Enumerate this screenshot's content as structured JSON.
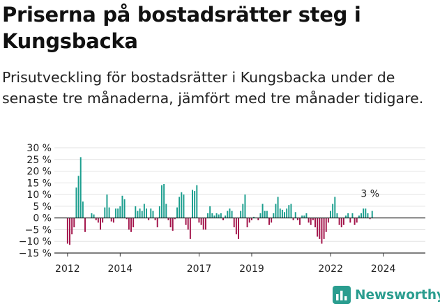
{
  "header": {
    "title": "Priserna på bostadsrätter steg i Kungsbacka",
    "subtitle": "Prisutveckling för bostadsrätter i Kungsbacka under de senaste tre månaderna, jämfört med tre månader tidigare."
  },
  "brand": {
    "name": "Newsworthy"
  },
  "colors": {
    "positive": "#1b9e8e",
    "negative": "#a3154b",
    "logo": "#2a9d8f"
  },
  "chart_data": {
    "type": "bar",
    "title": "Priserna på bostadsrätter steg i Kungsbacka",
    "xlabel": "",
    "ylabel": "",
    "ylim": [
      -15,
      30
    ],
    "y_ticks": [
      -15,
      -10,
      -5,
      0,
      5,
      10,
      15,
      20,
      25,
      30
    ],
    "y_tick_labels": [
      "−15 %",
      "−10 %",
      "−5 %",
      "0 %",
      "5 %",
      "10 %",
      "15 %",
      "20 %",
      "25 %",
      "30 %"
    ],
    "x_range": [
      2011.5,
      2025.6
    ],
    "x_ticks": [
      2012,
      2014,
      2017,
      2019,
      2022,
      2024
    ],
    "x_tick_labels": [
      "2012",
      "2014",
      "2017",
      "2019",
      "2022",
      "2024"
    ],
    "grid": true,
    "last_label": "3 %",
    "series": [
      {
        "name": "Prisutveckling",
        "start": 2012.0,
        "step": 0.0833,
        "values": [
          -11,
          -11.5,
          -7,
          -4,
          13,
          18,
          26,
          7,
          -6,
          0,
          0,
          2,
          1.5,
          -1,
          -2,
          -5,
          -2,
          4.5,
          10,
          4.5,
          -1.5,
          -2,
          4,
          4,
          5,
          9.5,
          8,
          -0.5,
          -5,
          -6,
          -4,
          5,
          3,
          4,
          3,
          6,
          4,
          -1,
          4,
          3,
          -1,
          -4,
          5,
          14,
          14.5,
          6,
          -1,
          -4,
          -5.5,
          -0.5,
          4.5,
          9,
          11,
          10,
          -3,
          -5,
          -9,
          12,
          11.5,
          14,
          -2,
          -3,
          -5,
          -5,
          2,
          5,
          2,
          1,
          2,
          1.5,
          2,
          -1,
          1,
          3,
          4,
          3,
          -4,
          -7,
          -9,
          3,
          6,
          10,
          -4,
          -2,
          -1,
          0.5,
          0,
          -1,
          2,
          6,
          3,
          3,
          -3,
          -2,
          2,
          6,
          9,
          4,
          3.5,
          2.5,
          4,
          5.5,
          6,
          -1,
          2.5,
          -1,
          -3,
          1,
          1,
          2,
          -2,
          -3,
          -1,
          -4,
          -8,
          -9,
          -11,
          -9,
          -6,
          -2,
          3,
          6,
          9,
          2,
          -3,
          -4,
          -3,
          1,
          2,
          -2,
          2,
          -3,
          -2,
          1,
          2,
          4,
          4,
          2,
          -0.5,
          3
        ]
      }
    ]
  }
}
